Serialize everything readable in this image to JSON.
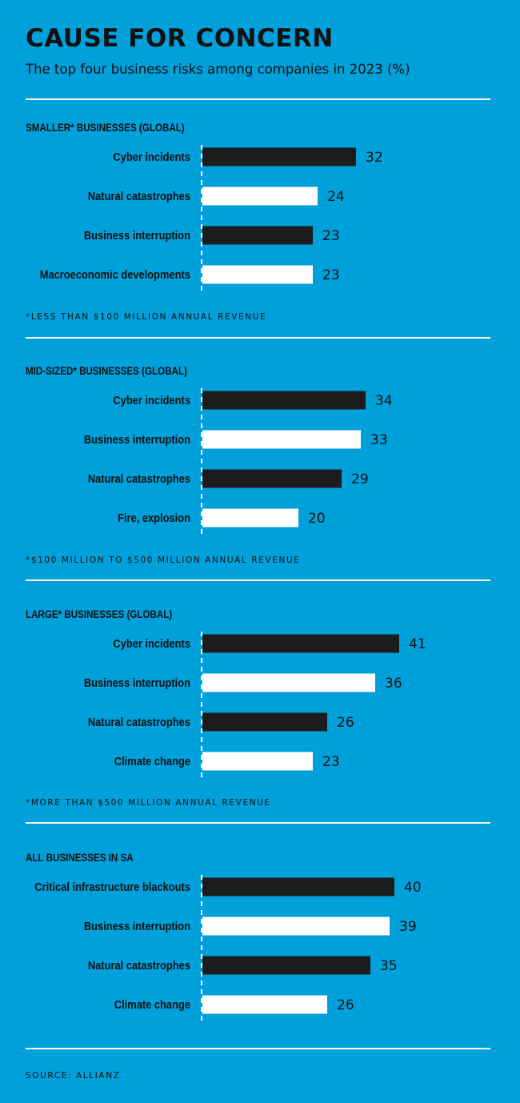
{
  "header": {
    "title": "CAUSE FOR CONCERN",
    "subtitle": "The top four business risks among companies in 2023 (%)"
  },
  "source": "SOURCE: ALLIANZ",
  "colors": {
    "background": "#00a0db",
    "dark_bar": "#1c1c1c",
    "light_bar": "#ffffff",
    "rule": "#ffffff"
  },
  "chart_data": [
    {
      "type": "bar",
      "orientation": "horizontal",
      "title": "SMALLER* BUSINESSES (GLOBAL)",
      "categories": [
        "Cyber incidents",
        "Natural catastrophes",
        "Business interruption",
        "Macroeconomic developments"
      ],
      "values": [
        32,
        24,
        23,
        23
      ],
      "footnote": "*LESS THAN $100 MILLION ANNUAL REVENUE"
    },
    {
      "type": "bar",
      "orientation": "horizontal",
      "title": "MID-SIZED* BUSINESSES (GLOBAL)",
      "categories": [
        "Cyber incidents",
        "Business interruption",
        "Natural catastrophes",
        "Fire, explosion"
      ],
      "values": [
        34,
        33,
        29,
        20
      ],
      "footnote": "*$100 MILLION TO $500 MILLION ANNUAL REVENUE"
    },
    {
      "type": "bar",
      "orientation": "horizontal",
      "title": "LARGE* BUSINESSES (GLOBAL)",
      "categories": [
        "Cyber incidents",
        "Business interruption",
        "Natural catastrophes",
        "Climate change"
      ],
      "values": [
        41,
        36,
        26,
        23
      ],
      "footnote": "*MORE THAN $500 MILLION ANNUAL REVENUE"
    },
    {
      "type": "bar",
      "orientation": "horizontal",
      "title": "ALL BUSINESSES IN SA",
      "categories": [
        "Critical infrastructure blackouts",
        "Business interruption",
        "Natural catastrophes",
        "Climate change"
      ],
      "values": [
        40,
        39,
        35,
        26
      ],
      "footnote": ""
    }
  ]
}
